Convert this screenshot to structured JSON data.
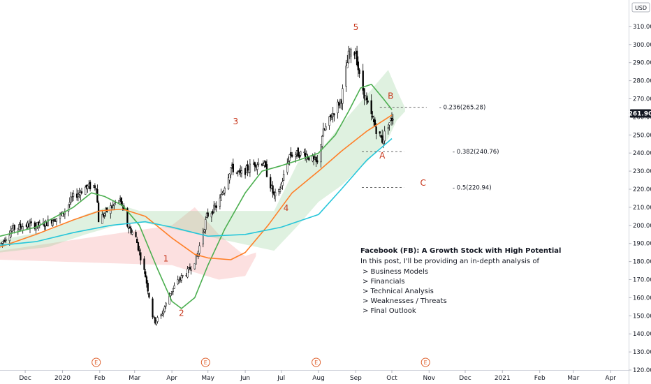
{
  "chart_data": {
    "type": "candlestick",
    "currency_label": "USD",
    "last_price_label": "261.90",
    "ylim": [
      120,
      320
    ],
    "y_ticks": [
      120,
      130,
      140,
      150,
      160,
      170,
      180,
      190,
      200,
      210,
      220,
      230,
      240,
      250,
      260,
      270,
      280,
      290,
      300,
      310
    ],
    "x_range": [
      "2019-11-10",
      "2021-04-16"
    ],
    "x_ticks": [
      {
        "label": "Dec",
        "date": "2019-12-01"
      },
      {
        "label": "2020",
        "date": "2020-01-01"
      },
      {
        "label": "Feb",
        "date": "2020-02-01"
      },
      {
        "label": "Mar",
        "date": "2020-03-01"
      },
      {
        "label": "Apr",
        "date": "2020-04-01"
      },
      {
        "label": "May",
        "date": "2020-05-01"
      },
      {
        "label": "Jun",
        "date": "2020-06-01"
      },
      {
        "label": "Jul",
        "date": "2020-07-01"
      },
      {
        "label": "Aug",
        "date": "2020-08-01"
      },
      {
        "label": "Sep",
        "date": "2020-09-01"
      },
      {
        "label": "Oct",
        "date": "2020-10-01"
      },
      {
        "label": "Nov",
        "date": "2020-11-01"
      },
      {
        "label": "Dec",
        "date": "2020-12-01"
      },
      {
        "label": "2021",
        "date": "2021-01-01"
      },
      {
        "label": "Feb",
        "date": "2021-02-01"
      },
      {
        "label": "Mar",
        "date": "2021-03-01"
      },
      {
        "label": "Apr",
        "date": "2021-04-01"
      }
    ],
    "earnings_markers": [
      {
        "date": "2020-01-29",
        "label": "E"
      },
      {
        "date": "2020-04-29",
        "label": "E"
      },
      {
        "date": "2020-07-30",
        "label": "E"
      },
      {
        "date": "2020-10-29",
        "label": "E"
      }
    ],
    "price_path": [
      [
        "2019-11-11",
        190
      ],
      [
        "2019-11-20",
        198
      ],
      [
        "2019-12-01",
        200
      ],
      [
        "2019-12-15",
        200
      ],
      [
        "2020-01-01",
        206
      ],
      [
        "2020-01-09",
        215
      ],
      [
        "2020-01-20",
        221
      ],
      [
        "2020-01-29",
        222
      ],
      [
        "2020-01-31",
        203
      ],
      [
        "2020-02-10",
        210
      ],
      [
        "2020-02-18",
        214
      ],
      [
        "2020-02-24",
        200
      ],
      [
        "2020-03-02",
        193
      ],
      [
        "2020-03-10",
        172
      ],
      [
        "2020-03-16",
        150
      ],
      [
        "2020-03-18",
        147
      ],
      [
        "2020-03-23",
        150
      ],
      [
        "2020-03-31",
        163
      ],
      [
        "2020-04-07",
        170
      ],
      [
        "2020-04-15",
        175
      ],
      [
        "2020-04-22",
        183
      ],
      [
        "2020-04-30",
        205
      ],
      [
        "2020-05-10",
        212
      ],
      [
        "2020-05-20",
        232
      ],
      [
        "2020-05-28",
        228
      ],
      [
        "2020-06-08",
        234
      ],
      [
        "2020-06-16",
        235
      ],
      [
        "2020-06-25",
        216
      ],
      [
        "2020-06-29",
        218
      ],
      [
        "2020-07-08",
        239
      ],
      [
        "2020-07-20",
        240
      ],
      [
        "2020-07-31",
        234
      ],
      [
        "2020-08-04",
        250
      ],
      [
        "2020-08-13",
        262
      ],
      [
        "2020-08-20",
        270
      ],
      [
        "2020-08-26",
        294
      ],
      [
        "2020-09-01",
        296
      ],
      [
        "2020-09-04",
        282
      ],
      [
        "2020-09-10",
        268
      ],
      [
        "2020-09-18",
        253
      ],
      [
        "2020-09-23",
        247
      ],
      [
        "2020-09-28",
        256
      ],
      [
        "2020-10-02",
        260
      ]
    ],
    "series": [
      {
        "name": "",
        "color": "#4caf50",
        "points": [
          [
            "2019-11-10",
            194
          ],
          [
            "2019-12-10",
            199
          ],
          [
            "2020-01-10",
            210
          ],
          [
            "2020-01-25",
            218
          ],
          [
            "2020-02-05",
            216
          ],
          [
            "2020-02-20",
            211
          ],
          [
            "2020-03-05",
            200
          ],
          [
            "2020-03-20",
            176
          ],
          [
            "2020-04-01",
            158
          ],
          [
            "2020-04-09",
            154
          ],
          [
            "2020-04-20",
            160
          ],
          [
            "2020-05-01",
            178
          ],
          [
            "2020-05-15",
            198
          ],
          [
            "2020-06-01",
            218
          ],
          [
            "2020-06-15",
            230
          ],
          [
            "2020-07-01",
            233
          ],
          [
            "2020-07-15",
            236
          ],
          [
            "2020-08-01",
            240
          ],
          [
            "2020-08-15",
            250
          ],
          [
            "2020-08-26",
            263
          ],
          [
            "2020-09-05",
            276
          ],
          [
            "2020-09-14",
            278
          ],
          [
            "2020-09-24",
            270
          ],
          [
            "2020-10-01",
            264
          ]
        ]
      },
      {
        "name": "",
        "color": "#ff7f27",
        "points": [
          [
            "2019-11-10",
            188
          ],
          [
            "2019-12-10",
            195
          ],
          [
            "2020-01-10",
            203
          ],
          [
            "2020-02-01",
            208
          ],
          [
            "2020-02-20",
            209
          ],
          [
            "2020-03-10",
            205
          ],
          [
            "2020-04-01",
            193
          ],
          [
            "2020-04-20",
            184
          ],
          [
            "2020-05-01",
            182
          ],
          [
            "2020-05-20",
            181
          ],
          [
            "2020-06-01",
            185
          ],
          [
            "2020-06-20",
            200
          ],
          [
            "2020-07-10",
            218
          ],
          [
            "2020-08-01",
            230
          ],
          [
            "2020-08-20",
            241
          ],
          [
            "2020-09-10",
            252
          ],
          [
            "2020-10-01",
            261
          ]
        ]
      },
      {
        "name": "",
        "color": "#26c6da",
        "points": [
          [
            "2019-11-10",
            189
          ],
          [
            "2019-12-10",
            191
          ],
          [
            "2020-01-10",
            196
          ],
          [
            "2020-02-10",
            200
          ],
          [
            "2020-03-10",
            202
          ],
          [
            "2020-04-01",
            199
          ],
          [
            "2020-05-01",
            194
          ],
          [
            "2020-06-01",
            195
          ],
          [
            "2020-07-01",
            199
          ],
          [
            "2020-08-01",
            206
          ],
          [
            "2020-08-20",
            220
          ],
          [
            "2020-09-10",
            236
          ],
          [
            "2020-10-01",
            248
          ]
        ]
      }
    ],
    "cloud_green": [
      [
        "2019-11-10",
        185,
        192
      ],
      [
        "2019-12-20",
        188,
        197
      ],
      [
        "2020-01-20",
        195,
        206
      ],
      [
        "2020-02-15",
        200,
        212
      ],
      [
        "2020-03-05",
        202,
        208
      ],
      [
        "2020-06-25",
        186,
        208
      ],
      [
        "2020-07-15",
        200,
        235
      ],
      [
        "2020-08-01",
        213,
        240
      ],
      [
        "2020-08-20",
        222,
        256
      ],
      [
        "2020-09-10",
        235,
        272
      ],
      [
        "2020-09-28",
        248,
        286
      ],
      [
        "2020-10-05",
        258,
        275
      ],
      [
        "2020-10-12",
        263,
        265
      ]
    ],
    "cloud_red": [
      [
        "2019-11-10",
        181,
        186
      ],
      [
        "2020-04-01",
        178,
        200
      ],
      [
        "2020-04-20",
        174,
        210
      ],
      [
        "2020-05-10",
        170,
        195
      ],
      [
        "2020-06-01",
        172,
        183
      ],
      [
        "2020-06-10",
        183,
        185
      ]
    ],
    "fib_levels": [
      {
        "ratio": "0.236",
        "price": 265.28,
        "label": "0.236(265.28)",
        "from": "2020-09-21",
        "to": "2020-10-30"
      },
      {
        "ratio": "0.382",
        "price": 240.76,
        "label": "0.382(240.76)",
        "from": "2020-09-06",
        "to": "2020-10-11"
      },
      {
        "ratio": "0.5",
        "price": 220.94,
        "label": "0.5(220.94)",
        "from": "2020-09-06",
        "to": "2020-10-11"
      }
    ],
    "wave_labels": [
      {
        "text": "1",
        "date": "2020-03-27",
        "price": 180
      },
      {
        "text": "2",
        "date": "2020-04-09",
        "price": 150
      },
      {
        "text": "3",
        "date": "2020-05-24",
        "price": 256
      },
      {
        "text": "4",
        "date": "2020-07-05",
        "price": 208
      },
      {
        "text": "5",
        "date": "2020-09-01",
        "price": 308
      },
      {
        "text": "A",
        "date": "2020-09-23",
        "price": 237
      },
      {
        "text": "B",
        "date": "2020-09-30",
        "price": 270
      },
      {
        "text": "C",
        "date": "2020-10-27",
        "price": 222
      }
    ]
  },
  "annotation": {
    "title": "Facebook (FB): A Growth Stock with High Potential",
    "intro": "In this post, I'll be providing an in-depth analysis of",
    "items": [
      "> Business Models",
      "> Financials",
      "> Technical Analysis",
      "> Weaknesses / Threats",
      "> Final Outlook"
    ]
  }
}
